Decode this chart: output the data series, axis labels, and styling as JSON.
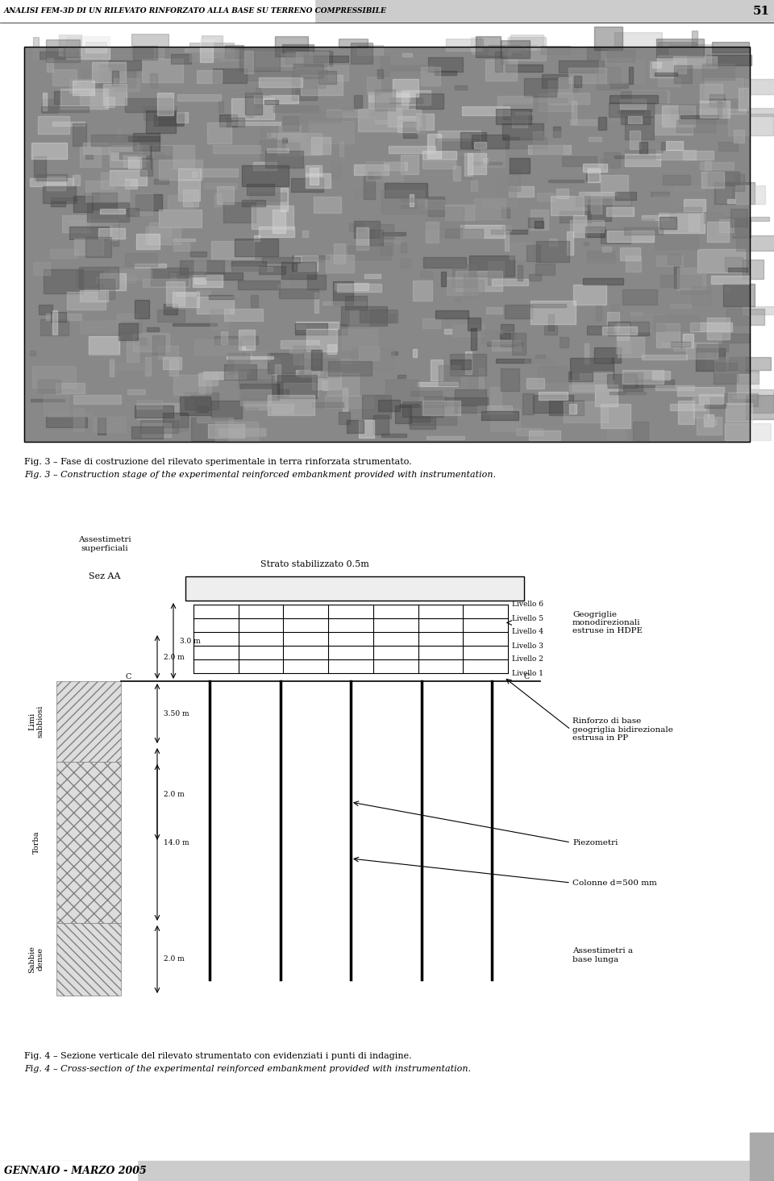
{
  "header_text": "ANALISI FEM-3D DI UN RILEVATO RINFORZATO ALLA BASE SU TERRENO COMPRESSIBILE",
  "page_number": "51",
  "header_bg": "#cccccc",
  "footer_text": "GENNAIO - MARZO 2005",
  "footer_bg": "#cccccc",
  "fig3_caption_it": "Fig. 3 – Fase di costruzione del rilevato sperimentale in terra rinforzata strumentato.",
  "fig3_caption_en": "Fig. 3 – Construction stage of the experimental reinforced embankment provided with instrumentation.",
  "fig4_caption_it": "Fig. 4 – Sezione verticale del rilevato strumentato con evidenziati i punti di indagine.",
  "fig4_caption_en": "Fig. 4 – Cross-section of the experimental reinforced embankment provided with instrumentation.",
  "bg_color": "#ffffff",
  "text_color": "#000000"
}
